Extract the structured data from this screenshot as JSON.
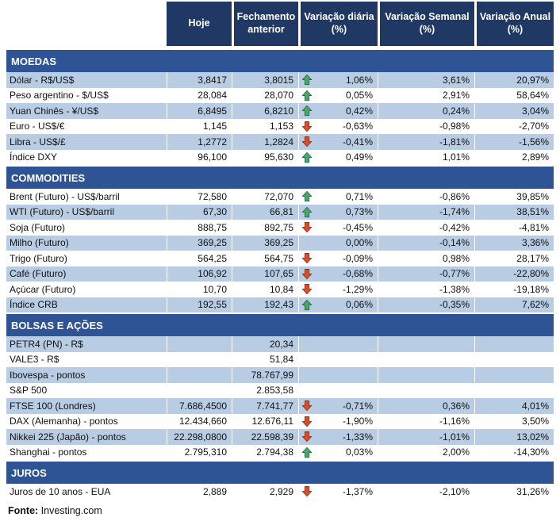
{
  "colors": {
    "header_bg": "#1F3864",
    "section_bg": "#2F5496",
    "row_shaded": "#B8CCE4",
    "arrow_up_fill": "#4EA46C",
    "arrow_up_stroke": "#1F6B3D",
    "arrow_down_fill": "#D8502B",
    "arrow_down_stroke": "#8E2A12"
  },
  "chart_data": {
    "type": "table",
    "columns": [
      "Hoje",
      "Fechamento anterior",
      "Variação diária (%)",
      "Variação Semanal (%)",
      "Variação Anual (%)"
    ],
    "sections": [
      {
        "title": "MOEDAS",
        "rows": [
          {
            "label": "Dólar - R$/US$",
            "hoje": "3,8417",
            "fechamento": "3,8015",
            "arrow": "up",
            "var_diaria": "1,06%",
            "var_semanal": "3,61%",
            "var_anual": "20,97%"
          },
          {
            "label": "Peso argentino - $/US$",
            "hoje": "28,084",
            "fechamento": "28,070",
            "arrow": "up",
            "var_diaria": "0,05%",
            "var_semanal": "2,91%",
            "var_anual": "58,64%"
          },
          {
            "label": "Yuan Chinês - ¥/US$",
            "hoje": "6,8495",
            "fechamento": "6,8210",
            "arrow": "up",
            "var_diaria": "0,42%",
            "var_semanal": "0,24%",
            "var_anual": "3,04%"
          },
          {
            "label": "Euro - US$/€",
            "hoje": "1,145",
            "fechamento": "1,153",
            "arrow": "down",
            "var_diaria": "-0,63%",
            "var_semanal": "-0,98%",
            "var_anual": "-2,70%"
          },
          {
            "label": "Libra - US$/£",
            "hoje": "1,2772",
            "fechamento": "1,2824",
            "arrow": "down",
            "var_diaria": "-0,41%",
            "var_semanal": "-1,81%",
            "var_anual": "-1,56%"
          },
          {
            "label": "Índice DXY",
            "hoje": "96,100",
            "fechamento": "95,630",
            "arrow": "up",
            "var_diaria": "0,49%",
            "var_semanal": "1,01%",
            "var_anual": "2,89%"
          }
        ]
      },
      {
        "title": "COMMODITIES",
        "rows": [
          {
            "label": "Brent (Futuro) - US$/barril",
            "hoje": "72,580",
            "fechamento": "72,070",
            "arrow": "up",
            "var_diaria": "0,71%",
            "var_semanal": "-0,86%",
            "var_anual": "39,85%"
          },
          {
            "label": "WTI (Futuro) - US$/barril",
            "hoje": "67,30",
            "fechamento": "66,81",
            "arrow": "up",
            "var_diaria": "0,73%",
            "var_semanal": "-1,74%",
            "var_anual": "38,51%"
          },
          {
            "label": "Soja (Futuro)",
            "hoje": "888,75",
            "fechamento": "892,75",
            "arrow": "down",
            "var_diaria": "-0,45%",
            "var_semanal": "-0,42%",
            "var_anual": "-4,81%"
          },
          {
            "label": "Milho (Futuro)",
            "hoje": "369,25",
            "fechamento": "369,25",
            "arrow": "none",
            "var_diaria": "0,00%",
            "var_semanal": "-0,14%",
            "var_anual": "3,36%"
          },
          {
            "label": "Trigo (Futuro)",
            "hoje": "564,25",
            "fechamento": "564,75",
            "arrow": "down",
            "var_diaria": "-0,09%",
            "var_semanal": "0,98%",
            "var_anual": "28,17%"
          },
          {
            "label": "Café (Futuro)",
            "hoje": "106,92",
            "fechamento": "107,65",
            "arrow": "down",
            "var_diaria": "-0,68%",
            "var_semanal": "-0,77%",
            "var_anual": "-22,80%"
          },
          {
            "label": "Açúcar (Futuro)",
            "hoje": "10,70",
            "fechamento": "10,84",
            "arrow": "down",
            "var_diaria": "-1,29%",
            "var_semanal": "-1,38%",
            "var_anual": "-19,18%"
          },
          {
            "label": "Índice CRB",
            "hoje": "192,55",
            "fechamento": "192,43",
            "arrow": "up",
            "var_diaria": "0,06%",
            "var_semanal": "-0,35%",
            "var_anual": "7,62%"
          }
        ]
      },
      {
        "title": "BOLSAS E AÇÕES",
        "rows": [
          {
            "label": "PETR4 (PN) - R$",
            "hoje": "",
            "fechamento": "20,34",
            "arrow": "none",
            "var_diaria": "",
            "var_semanal": "",
            "var_anual": ""
          },
          {
            "label": "VALE3 - R$",
            "hoje": "",
            "fechamento": "51,84",
            "arrow": "none",
            "var_diaria": "",
            "var_semanal": "",
            "var_anual": ""
          },
          {
            "label": "Ibovespa - pontos",
            "hoje": "",
            "fechamento": "78.767,99",
            "arrow": "none",
            "var_diaria": "",
            "var_semanal": "",
            "var_anual": ""
          },
          {
            "label": "S&P 500",
            "hoje": "",
            "fechamento": "2.853,58",
            "arrow": "none",
            "var_diaria": "",
            "var_semanal": "",
            "var_anual": ""
          },
          {
            "label": "FTSE 100 (Londres)",
            "hoje": "7.686,4500",
            "fechamento": "7.741,77",
            "arrow": "down",
            "var_diaria": "-0,71%",
            "var_semanal": "0,36%",
            "var_anual": "4,01%"
          },
          {
            "label": "DAX (Alemanha) - pontos",
            "hoje": "12.434,660",
            "fechamento": "12.676,11",
            "arrow": "down",
            "var_diaria": "-1,90%",
            "var_semanal": "-1,16%",
            "var_anual": "3,50%"
          },
          {
            "label": "Nikkei 225 (Japão) - pontos",
            "hoje": "22.298,0800",
            "fechamento": "22.598,39",
            "arrow": "down",
            "var_diaria": "-1,33%",
            "var_semanal": "-1,01%",
            "var_anual": "13,02%"
          },
          {
            "label": "Shanghai - pontos",
            "hoje": "2.795,310",
            "fechamento": "2.794,38",
            "arrow": "up",
            "var_diaria": "0,03%",
            "var_semanal": "2,00%",
            "var_anual": "-14,30%"
          }
        ]
      },
      {
        "title": "JUROS",
        "rows": [
          {
            "label": "Juros de 10 anos - EUA",
            "hoje": "2,889",
            "fechamento": "2,929",
            "arrow": "down",
            "var_diaria": "-1,37%",
            "var_semanal": "-2,10%",
            "var_anual": "31,26%"
          }
        ]
      }
    ]
  },
  "footer": {
    "label": "Fonte:",
    "text": " Investing.com"
  }
}
